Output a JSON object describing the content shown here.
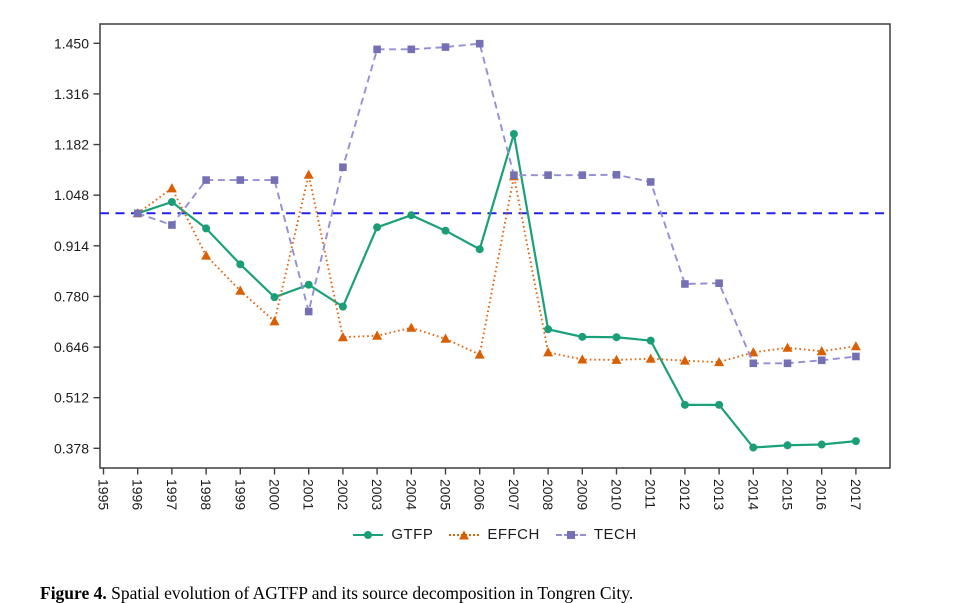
{
  "figure": {
    "caption_label": "Figure 4.",
    "caption_text": " Spatial evolution of AGTFP and its source decomposition in Tongren City."
  },
  "chart_data": {
    "type": "line",
    "title": "",
    "xlabel": "",
    "ylabel": "",
    "grid": false,
    "x": [
      1996,
      1997,
      1998,
      1999,
      2000,
      2001,
      2002,
      2003,
      2004,
      2005,
      2006,
      2007,
      2008,
      2009,
      2010,
      2011,
      2012,
      2013,
      2014,
      2015,
      2016,
      2017
    ],
    "series": [
      {
        "name": "GTFP",
        "color": "#1b9e77",
        "line_color": "#1ba179",
        "line_style": "solid",
        "marker": "circle",
        "values": [
          1.0,
          1.03,
          0.96,
          0.865,
          0.778,
          0.811,
          0.753,
          0.963,
          0.995,
          0.954,
          0.905,
          1.21,
          0.693,
          0.673,
          0.672,
          0.663,
          0.493,
          0.493,
          0.38,
          0.386,
          0.388,
          0.397
        ]
      },
      {
        "name": "EFFCH",
        "color": "#d95f02",
        "line_color": "#e0650f",
        "line_style": "dotted",
        "marker": "triangle",
        "values": [
          1.0,
          1.066,
          0.888,
          0.795,
          0.714,
          1.102,
          0.672,
          0.676,
          0.697,
          0.668,
          0.626,
          1.098,
          0.632,
          0.613,
          0.612,
          0.615,
          0.61,
          0.606,
          0.632,
          0.644,
          0.635,
          0.648
        ]
      },
      {
        "name": "TECH",
        "color": "#7570b3",
        "line_color": "#948fd6",
        "line_style": "dashed",
        "marker": "square",
        "values": [
          1.0,
          0.969,
          1.088,
          1.088,
          1.088,
          0.74,
          1.122,
          1.434,
          1.434,
          1.44,
          1.449,
          1.101,
          1.101,
          1.101,
          1.102,
          1.083,
          0.813,
          0.815,
          0.603,
          0.603,
          0.611,
          0.621
        ]
      }
    ],
    "reference_line": {
      "value": 1.0,
      "color": "#2222e8",
      "style": "dashed"
    },
    "x_axis": {
      "tick_labels": [
        "1995",
        "1996",
        "1997",
        "1998",
        "1999",
        "2000",
        "2001",
        "2002",
        "2003",
        "2004",
        "2005",
        "2006",
        "2007",
        "2008",
        "2009",
        "2010",
        "2011",
        "2012",
        "2013",
        "2014",
        "2015",
        "2016",
        "2017"
      ],
      "range": [
        1995,
        2017
      ],
      "tick_rotation_deg": 90
    },
    "y_axis": {
      "tick_labels": [
        "0.378",
        "0.512",
        "0.646",
        "0.780",
        "0.914",
        "1.048",
        "1.182",
        "1.316",
        "1.450"
      ],
      "range": [
        0.326,
        1.501
      ]
    },
    "legend": {
      "position": "bottom",
      "items": [
        "GTFP",
        "EFFCH",
        "TECH"
      ]
    }
  }
}
